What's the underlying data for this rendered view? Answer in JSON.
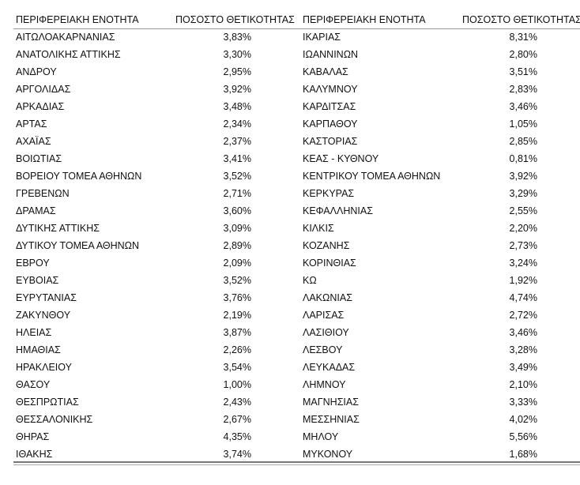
{
  "table": {
    "headers": [
      "ΠΕΡΙΦΕΡΕΙΑΚΗ ΕΝΟΤΗΤΑ",
      "ΠΟΣΟΣΤΟ ΘΕΤΙΚΟΤΗΤΑΣ",
      "ΠΕΡΙΦΕΡΕΙΑΚΗ ΕΝΟΤΗΤΑ",
      "ΠΟΣΟΣΤΟ ΘΕΤΙΚΟΤΗΤΑΣ"
    ],
    "rows": [
      [
        "ΑΙΤΩΛΟΑΚΑΡΝΑΝΙΑΣ",
        "3,83%",
        "ΙΚΑΡΙΑΣ",
        "8,31%"
      ],
      [
        "ΑΝΑΤΟΛΙΚΗΣ ΑΤΤΙΚΗΣ",
        "3,30%",
        "ΙΩΑΝΝΙΝΩΝ",
        "2,80%"
      ],
      [
        "ΑΝΔΡΟΥ",
        "2,95%",
        "ΚΑΒΑΛΑΣ",
        "3,51%"
      ],
      [
        "ΑΡΓΟΛΙΔΑΣ",
        "3,92%",
        "ΚΑΛΥΜΝΟΥ",
        "2,83%"
      ],
      [
        "ΑΡΚΑΔΙΑΣ",
        "3,48%",
        "ΚΑΡΔΙΤΣΑΣ",
        "3,46%"
      ],
      [
        "ΑΡΤΑΣ",
        "2,34%",
        "ΚΑΡΠΑΘΟΥ",
        "1,05%"
      ],
      [
        "ΑΧΑΪΑΣ",
        "2,37%",
        "ΚΑΣΤΟΡΙΑΣ",
        "2,85%"
      ],
      [
        "ΒΟΙΩΤΙΑΣ",
        "3,41%",
        "ΚΕΑΣ - ΚΥΘΝΟΥ",
        "0,81%"
      ],
      [
        "ΒΟΡΕΙΟΥ ΤΟΜΕΑ ΑΘΗΝΩΝ",
        "3,52%",
        "ΚΕΝΤΡΙΚΟΥ ΤΟΜΕΑ ΑΘΗΝΩΝ",
        "3,92%"
      ],
      [
        "ΓΡΕΒΕΝΩΝ",
        "2,71%",
        "ΚΕΡΚΥΡΑΣ",
        "3,29%"
      ],
      [
        "ΔΡΑΜΑΣ",
        "3,60%",
        "ΚΕΦΑΛΛΗΝΙΑΣ",
        "2,55%"
      ],
      [
        "ΔΥΤΙΚΗΣ ΑΤΤΙΚΗΣ",
        "3,09%",
        "ΚΙΛΚΙΣ",
        "2,20%"
      ],
      [
        "ΔΥΤΙΚΟΥ ΤΟΜΕΑ ΑΘΗΝΩΝ",
        "2,89%",
        "ΚΟΖΑΝΗΣ",
        "2,73%"
      ],
      [
        "ΕΒΡΟΥ",
        "2,09%",
        "ΚΟΡΙΝΘΙΑΣ",
        "3,24%"
      ],
      [
        "ΕΥΒΟΙΑΣ",
        "3,52%",
        "ΚΩ",
        "1,92%"
      ],
      [
        "ΕΥΡΥΤΑΝΙΑΣ",
        "3,76%",
        "ΛΑΚΩΝΙΑΣ",
        "4,74%"
      ],
      [
        "ΖΑΚΥΝΘΟΥ",
        "2,19%",
        "ΛΑΡΙΣΑΣ",
        "2,72%"
      ],
      [
        "ΗΛΕΙΑΣ",
        "3,87%",
        "ΛΑΣΙΘΙΟΥ",
        "3,46%"
      ],
      [
        "ΗΜΑΘΙΑΣ",
        "2,26%",
        "ΛΕΣΒΟΥ",
        "3,28%"
      ],
      [
        "ΗΡΑΚΛΕΙΟΥ",
        "3,54%",
        "ΛΕΥΚΑΔΑΣ",
        "3,49%"
      ],
      [
        "ΘΑΣΟΥ",
        "1,00%",
        "ΛΗΜΝΟΥ",
        "2,10%"
      ],
      [
        "ΘΕΣΠΡΩΤΙΑΣ",
        "2,43%",
        "ΜΑΓΝΗΣΙΑΣ",
        "3,33%"
      ],
      [
        "ΘΕΣΣΑΛΟΝΙΚΗΣ",
        "2,67%",
        "ΜΕΣΣΗΝΙΑΣ",
        "4,02%"
      ],
      [
        "ΘΗΡΑΣ",
        "4,35%",
        "ΜΗΛΟΥ",
        "5,56%"
      ],
      [
        "ΙΘΑΚΗΣ",
        "3,74%",
        "ΜΥΚΟΝΟΥ",
        "1,68%"
      ]
    ]
  }
}
